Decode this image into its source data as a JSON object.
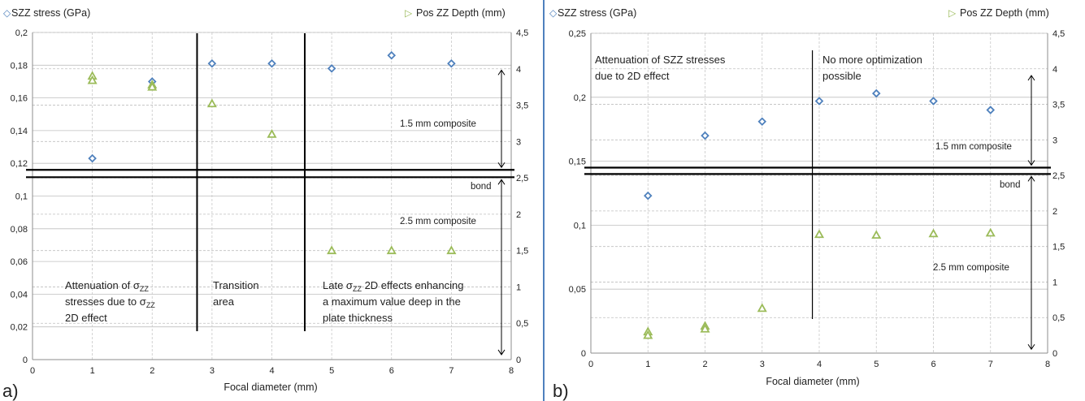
{
  "chart_data": [
    {
      "type": "scatter",
      "panel_label": "a)",
      "xlabel": "Focal diameter (mm)",
      "xlim": [
        0,
        8
      ],
      "x_ticks": [
        "0",
        "1",
        "2",
        "3",
        "4",
        "5",
        "6",
        "7",
        "8"
      ],
      "y_left": {
        "label": "SZZ stress (GPa)",
        "lim": [
          0,
          0.2
        ],
        "ticks": [
          "0",
          "0,02",
          "0,04",
          "0,06",
          "0,08",
          "0,1",
          "0,12",
          "0,14",
          "0,16",
          "0,18",
          "0,2"
        ]
      },
      "y_right": {
        "label": "Pos ZZ Depth (mm)",
        "lim": [
          0,
          4.5
        ],
        "ticks": [
          "0",
          "0,5",
          "1",
          "1,5",
          "2",
          "2,5",
          "3",
          "3,5",
          "4",
          "4,5"
        ]
      },
      "grid": true,
      "series": [
        {
          "name": "SZZ stress (GPa)",
          "axis": "left",
          "marker": "diamond",
          "color": "#4f81bd",
          "x": [
            1,
            2,
            3,
            4,
            5,
            6,
            7
          ],
          "y": [
            0.123,
            0.17,
            0.181,
            0.181,
            0.178,
            0.186,
            0.181
          ]
        },
        {
          "name": "Pos ZZ Depth (mm)",
          "axis": "right",
          "marker": "triangle",
          "color": "#9bbb59",
          "x": [
            1,
            1,
            2,
            2,
            3,
            4,
            5,
            6,
            7
          ],
          "y": [
            3.9,
            3.84,
            3.78,
            3.75,
            3.52,
            3.1,
            1.5,
            1.5,
            1.5
          ]
        }
      ],
      "vlines_x": [
        2.75,
        4.55
      ],
      "bond_lines_y": [
        0.116,
        0.1115
      ],
      "annotations": {
        "composite_top": "1.5 mm composite",
        "bond": "bond",
        "composite_bottom": "2.5 mm composite",
        "region1": {
          "line1_pre": "Attenuation of ",
          "sigma": "σ",
          "sub": "ZZ",
          "line2_pre": "stresses due to ",
          "line3": "2D effect"
        },
        "region2": {
          "line1": "Transition",
          "line2": "area"
        },
        "region3": {
          "line1_pre": "Late ",
          "sigma": "σ",
          "sub": "ZZ",
          "line1_post": " 2D effects enhancing",
          "line2": "a maximum value deep in the",
          "line3": "plate thickness"
        }
      }
    },
    {
      "type": "scatter",
      "panel_label": "b)",
      "xlabel": "Focal diameter (mm)",
      "xlim": [
        0,
        8
      ],
      "x_ticks": [
        "0",
        "1",
        "2",
        "3",
        "4",
        "5",
        "6",
        "7",
        "8"
      ],
      "y_left": {
        "label": "SZZ stress (GPa)",
        "lim": [
          0,
          0.25
        ],
        "ticks": [
          "0",
          "0,05",
          "0,1",
          "0,15",
          "0,2",
          "0,25"
        ]
      },
      "y_right": {
        "label": "Pos ZZ Depth (mm)",
        "lim": [
          0,
          4.5
        ],
        "ticks": [
          "0",
          "0,5",
          "1",
          "1,5",
          "2",
          "2,5",
          "3",
          "3,5",
          "4",
          "4,5"
        ]
      },
      "grid": true,
      "series": [
        {
          "name": "SZZ stress (GPa)",
          "axis": "left",
          "marker": "diamond",
          "color": "#4f81bd",
          "x": [
            1,
            2,
            3,
            4,
            5,
            6,
            7
          ],
          "y": [
            0.123,
            0.17,
            0.181,
            0.197,
            0.203,
            0.197,
            0.19
          ]
        },
        {
          "name": "Pos ZZ Depth (mm)",
          "axis": "right",
          "marker": "triangle",
          "color": "#9bbb59",
          "x": [
            1,
            1,
            2,
            2,
            3,
            4,
            5,
            6,
            7
          ],
          "y": [
            0.3,
            0.25,
            0.38,
            0.34,
            0.63,
            1.67,
            1.66,
            1.68,
            1.69
          ]
        }
      ],
      "vlines_x": [
        3.88
      ],
      "bond_lines_y": [
        0.145,
        0.14
      ],
      "annotations": {
        "composite_top": "1.5 mm composite",
        "bond": "bond",
        "composite_bottom": "2.5 mm composite",
        "region1": {
          "line1": "Attenuation of SZZ stresses",
          "line2": "due to 2D effect"
        },
        "region2": {
          "line1": "No more optimization",
          "line2": "possible"
        }
      }
    }
  ]
}
